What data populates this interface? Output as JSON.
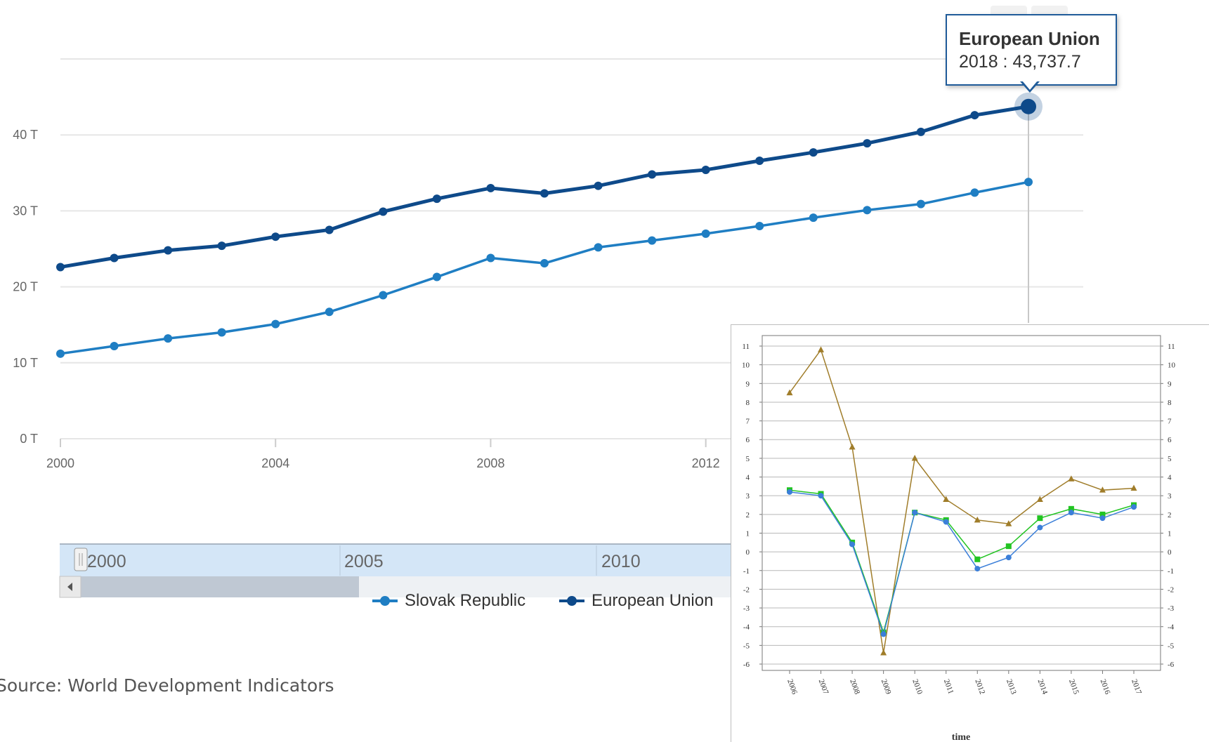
{
  "chart_data": [
    {
      "type": "line",
      "title": "",
      "xlabel": "",
      "ylabel": "",
      "x": [
        2000,
        2001,
        2002,
        2003,
        2004,
        2005,
        2006,
        2007,
        2008,
        2009,
        2010,
        2011,
        2012,
        2013,
        2014,
        2015,
        2016,
        2017,
        2018
      ],
      "x_ticks": [
        "2000",
        "2004",
        "2008",
        "2012"
      ],
      "y_ticks": [
        "0 T",
        "10 T",
        "20 T",
        "30 T",
        "40 T"
      ],
      "ylim": [
        0,
        50
      ],
      "grid": true,
      "legend_placement": "bottom",
      "series": [
        {
          "name": "Slovak Republic",
          "color": "#1f7ec3",
          "values": [
            11.2,
            12.2,
            13.2,
            14.0,
            15.1,
            16.7,
            18.9,
            21.3,
            23.8,
            23.1,
            25.2,
            26.1,
            27.0,
            28.0,
            29.1,
            30.1,
            30.9,
            32.4,
            33.8
          ]
        },
        {
          "name": "European Union",
          "color": "#0e4a8a",
          "values": [
            22.6,
            23.8,
            24.8,
            25.4,
            26.6,
            27.5,
            29.9,
            31.6,
            33.0,
            32.3,
            33.3,
            34.8,
            35.4,
            36.6,
            37.7,
            38.9,
            40.4,
            42.6,
            43.7377
          ]
        }
      ],
      "tooltip": {
        "title": "European Union",
        "text": "2018 : 43,737.7"
      },
      "navigator_labels": [
        "2000",
        "2005",
        "2010"
      ],
      "source": "Source: World Development Indicators"
    },
    {
      "type": "line",
      "title": "",
      "xlabel": "time",
      "ylabel": "",
      "x": [
        "2006",
        "2007",
        "2008",
        "2009",
        "2010",
        "2011",
        "2012",
        "2013",
        "2014",
        "2015",
        "2016",
        "2017"
      ],
      "ylim": [
        -6,
        11
      ],
      "y_ticks": [
        "11",
        "10",
        "9",
        "8",
        "7",
        "6",
        "5",
        "4",
        "3",
        "2",
        "1",
        "0",
        "-1",
        "-2",
        "-3",
        "-4",
        "-5",
        "-6"
      ],
      "grid": true,
      "series": [
        {
          "color": "#a07d2a",
          "marker": "triangle",
          "values": [
            8.5,
            10.8,
            5.6,
            -5.4,
            5.0,
            2.8,
            1.7,
            1.5,
            2.8,
            3.9,
            3.3,
            3.4
          ]
        },
        {
          "color": "#22c422",
          "marker": "square",
          "values": [
            3.3,
            3.1,
            0.5,
            -4.3,
            2.1,
            1.7,
            -0.4,
            0.3,
            1.8,
            2.3,
            2.0,
            2.5
          ]
        },
        {
          "color": "#3b7fd9",
          "marker": "circle",
          "values": [
            3.2,
            3.0,
            0.4,
            -4.4,
            2.1,
            1.6,
            -0.9,
            -0.3,
            1.3,
            2.1,
            1.8,
            2.4
          ]
        }
      ]
    }
  ],
  "colors": {
    "grid": "#e6e6e6",
    "axis_text": "#666666",
    "navigator_fill": "#d4e6f7",
    "scrollbar": "#bfc8d3"
  },
  "icons": {
    "scroll_left": "chevron-left-icon",
    "navigator_handle": "drag-handle-icon"
  }
}
